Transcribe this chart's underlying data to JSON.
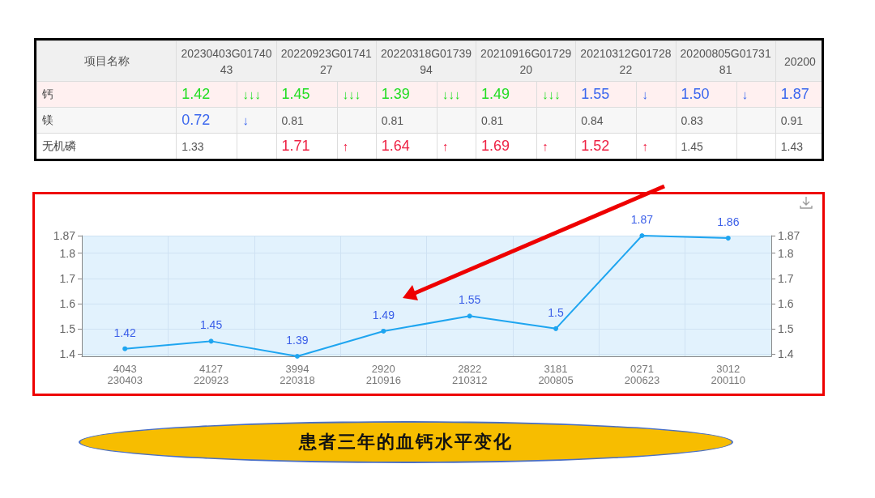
{
  "chart_data": [
    {
      "type": "other",
      "ylabel": "项目名称",
      "categories": [
        "20230403G0174043",
        "20220923G0174127",
        "20220318G0173994",
        "20210916G0172920",
        "20210312G0172822",
        "20200805G0173181",
        "20200"
      ],
      "y_categories": [
        "钙",
        "镁",
        "无机磷"
      ],
      "cell_labels": [
        [
          "1.42 ↓↓↓",
          "1.45 ↓↓↓",
          "1.39 ↓↓↓",
          "1.49 ↓↓↓",
          "1.55 ↓",
          "1.50 ↓",
          "1.87"
        ],
        [
          "0.72 ↓",
          "0.81",
          "0.81",
          "0.81",
          "0.84",
          "0.83",
          "0.91"
        ],
        [
          "1.33",
          "1.71 ↑",
          "1.64 ↑",
          "1.69 ↑",
          "1.52 ↑",
          "1.45",
          "1.43"
        ]
      ],
      "colors": [
        [
          "#22dd22",
          "#22dd22",
          "#22dd22",
          "#22dd22",
          "#3a66ee",
          "#3a66ee",
          "#3a66ee"
        ],
        [
          "#3a66ee",
          "#555555",
          "#555555",
          "#555555",
          "#555555",
          "#555555",
          "#555555"
        ],
        [
          "#555555",
          "#ee2244",
          "#ee2244",
          "#ee2244",
          "#ee2244",
          "#555555",
          "#555555"
        ]
      ]
    },
    {
      "type": "line",
      "title": "患者三年的血钙水平变化",
      "categories": [
        "4043\n230403",
        "4127\n220923",
        "3994\n220318",
        "2920\n210916",
        "2822\n210312",
        "3181\n200805",
        "0271\n200623",
        "3012\n200110"
      ],
      "series": [
        {
          "color": "#1ea5f0",
          "values": [
            1.42,
            1.45,
            1.39,
            1.49,
            1.55,
            1.5,
            1.87,
            1.86
          ]
        }
      ],
      "ylim": [
        1.39,
        1.87
      ],
      "yticks": [
        1.4,
        1.5,
        1.6,
        1.7,
        1.8,
        1.87
      ],
      "y2lim": [
        1.39,
        1.87
      ],
      "y2ticks": [
        1.4,
        1.5,
        1.6,
        1.7,
        1.8,
        1.87
      ],
      "grid": true,
      "marker": "circle",
      "data_labels": true
    }
  ]
}
